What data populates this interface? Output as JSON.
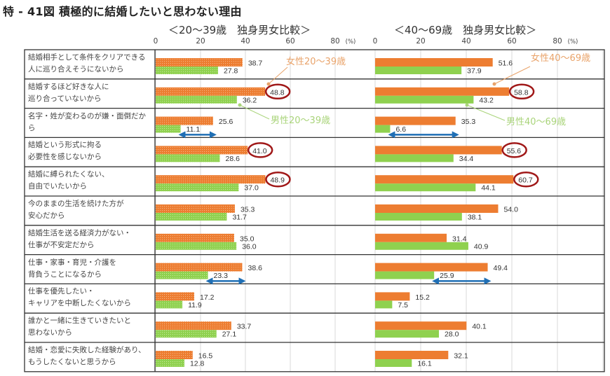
{
  "title": "特 - 41図 積極的に結婚したいと思わない理由",
  "unit_label": "(%)",
  "colors": {
    "female": "#ed7d31",
    "male": "#8fd14f",
    "highlight_ring": "#a01818",
    "gap_arrow": "#1f6fb5",
    "female_callout": "#e9a36a",
    "male_callout": "#a9d47a"
  },
  "categories": [
    [
      "結婚相手として条件をクリアできる",
      "人に巡り合えそうにないから"
    ],
    [
      "結婚するほど好きな人に",
      "巡り合っていないから"
    ],
    [
      "名字・姓が変わるのが嫌・面倒だか",
      "ら"
    ],
    [
      "結婚という形式に拘る",
      "必要性を感じないから"
    ],
    [
      "結婚に縛られたくない、",
      "自由でいたいから"
    ],
    [
      "今のままの生活を続けた方が",
      "安心だから"
    ],
    [
      "結婚生活を送る経済力がない・",
      "仕事が不安定だから"
    ],
    [
      "仕事・家事・育児・介護を",
      "背負うことになるから"
    ],
    [
      "仕事を優先したい・",
      "キャリアを中断したくないから"
    ],
    [
      "誰かと一緒に生きていきたいと",
      "思わないから"
    ],
    [
      "結婚・恋愛に失敗した経験があり、",
      "もうしたくないと思うから"
    ]
  ],
  "chart_data": [
    {
      "type": "bar",
      "orientation": "horizontal",
      "title": "＜20～39歳　独身男女比較＞",
      "xlim": [
        0,
        80
      ],
      "ticks": [
        "0",
        "20",
        "40",
        "60",
        "80"
      ],
      "grid": true,
      "pattern": "dotted",
      "series": [
        {
          "name": "女性20～39歳",
          "values": [
            38.7,
            48.8,
            25.6,
            41.0,
            48.9,
            35.3,
            35.0,
            38.6,
            17.2,
            33.7,
            16.5
          ]
        },
        {
          "name": "男性20～39歳",
          "values": [
            27.8,
            36.2,
            11.1,
            28.6,
            37.0,
            31.7,
            36.0,
            23.3,
            11.9,
            27.1,
            12.8
          ]
        }
      ],
      "highlighted_female": [
        1,
        3,
        4
      ],
      "gap_arrows": [
        2,
        7
      ]
    },
    {
      "type": "bar",
      "orientation": "horizontal",
      "title": "＜40～69歳　独身男女比較＞",
      "xlim": [
        0,
        80
      ],
      "ticks": [
        "0",
        "20",
        "40",
        "60",
        "80"
      ],
      "grid": true,
      "pattern": "solid",
      "series": [
        {
          "name": "女性40～69歳",
          "values": [
            51.6,
            58.8,
            35.3,
            55.6,
            60.7,
            54.0,
            31.4,
            49.4,
            15.2,
            40.1,
            32.1
          ]
        },
        {
          "name": "男性40～69歳",
          "values": [
            37.9,
            43.2,
            6.6,
            34.4,
            44.1,
            38.1,
            40.9,
            25.9,
            7.5,
            28.0,
            16.1
          ]
        }
      ],
      "highlighted_female": [
        1,
        3,
        4
      ],
      "gap_arrows": [
        2,
        7
      ]
    }
  ]
}
